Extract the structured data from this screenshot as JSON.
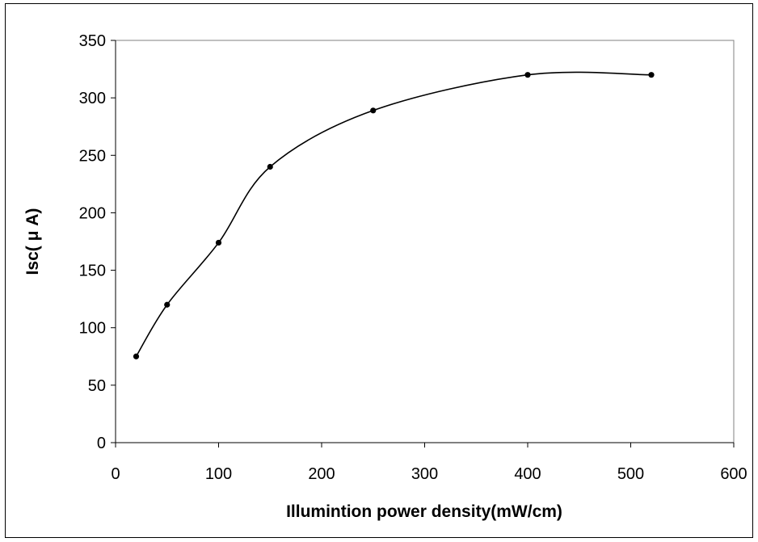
{
  "chart_data": {
    "type": "line",
    "title": "",
    "xlabel": "Illumintion power density(mW/cm)",
    "ylabel": "Isc( μ A)",
    "xlim": [
      0,
      600
    ],
    "ylim": [
      0,
      350
    ],
    "xticks": [
      0,
      100,
      200,
      300,
      400,
      500,
      600
    ],
    "yticks": [
      0,
      50,
      100,
      150,
      200,
      250,
      300,
      350
    ],
    "grid": false,
    "legend": "none",
    "series": [
      {
        "x": [
          20,
          50,
          100,
          150,
          250,
          400,
          520
        ],
        "y": [
          75,
          120,
          174,
          240,
          289,
          320,
          320
        ]
      }
    ],
    "line_color": "#000000",
    "marker": "filled-circle",
    "smooth": true
  }
}
